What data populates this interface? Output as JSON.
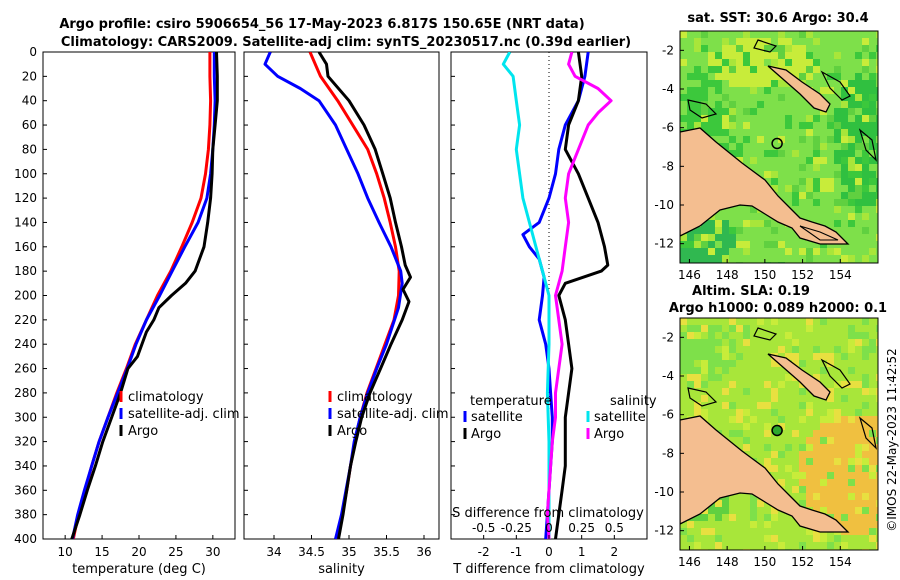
{
  "title": {
    "line1": "Argo profile: csiro 5906654_56 17-May-2023 6.817S 150.65E (NRT data)",
    "line2": "Climatology: CARS2009. Satellite-adj clim: synTS_20230517.nc (0.39d earlier)"
  },
  "watermark": "©IMOS 22-May-2023 11:42:52",
  "colors": {
    "climatology": "#ff0000",
    "satellite": "#0000ff",
    "argo": "#000000",
    "s_satellite": "#00e5ee",
    "s_argo": "#ff00ff"
  },
  "chart_data": [
    {
      "type": "line",
      "id": "temperature",
      "xlabel": "temperature (deg C)",
      "xlim": [
        7,
        33
      ],
      "ylim": [
        400,
        0
      ],
      "xticks": [
        10,
        15,
        20,
        25,
        30
      ],
      "yticks": [
        0,
        20,
        40,
        60,
        80,
        100,
        120,
        140,
        160,
        180,
        200,
        220,
        240,
        260,
        280,
        300,
        320,
        340,
        360,
        380,
        400
      ],
      "legend": [
        {
          "label": "climatology",
          "color": "#ff0000"
        },
        {
          "label": "satellite-adj. clim",
          "color": "#0000ff"
        },
        {
          "label": "Argo",
          "color": "#000000"
        }
      ],
      "series": [
        {
          "name": "climatology",
          "color": "#ff0000",
          "points": [
            [
              29.6,
              0
            ],
            [
              29.6,
              20
            ],
            [
              29.7,
              40
            ],
            [
              29.6,
              60
            ],
            [
              29.4,
              80
            ],
            [
              29.0,
              100
            ],
            [
              28.4,
              120
            ],
            [
              27.2,
              140
            ],
            [
              25.8,
              160
            ],
            [
              24.3,
              180
            ],
            [
              22.5,
              200
            ],
            [
              21.0,
              220
            ],
            [
              19.5,
              240
            ],
            [
              18.3,
              260
            ],
            [
              17.0,
              280
            ],
            [
              15.8,
              300
            ],
            [
              14.6,
              320
            ],
            [
              13.6,
              340
            ],
            [
              12.7,
              360
            ],
            [
              11.8,
              380
            ],
            [
              11.1,
              400
            ]
          ]
        },
        {
          "name": "satellite-adj. clim",
          "color": "#0000ff",
          "points": [
            [
              30.2,
              0
            ],
            [
              30.2,
              20
            ],
            [
              30.3,
              40
            ],
            [
              30.2,
              60
            ],
            [
              30.0,
              80
            ],
            [
              29.7,
              100
            ],
            [
              29.2,
              120
            ],
            [
              28.0,
              140
            ],
            [
              26.2,
              160
            ],
            [
              24.5,
              180
            ],
            [
              22.8,
              200
            ],
            [
              21.0,
              220
            ],
            [
              19.6,
              240
            ],
            [
              18.4,
              260
            ],
            [
              17.1,
              280
            ],
            [
              15.8,
              300
            ],
            [
              14.6,
              320
            ],
            [
              13.6,
              340
            ],
            [
              12.6,
              360
            ],
            [
              11.7,
              380
            ],
            [
              11.0,
              400
            ]
          ]
        },
        {
          "name": "Argo",
          "color": "#000000",
          "points": [
            [
              30.5,
              0
            ],
            [
              30.6,
              20
            ],
            [
              30.6,
              40
            ],
            [
              30.3,
              60
            ],
            [
              30.0,
              80
            ],
            [
              29.9,
              100
            ],
            [
              29.7,
              120
            ],
            [
              29.3,
              140
            ],
            [
              28.8,
              160
            ],
            [
              27.6,
              180
            ],
            [
              26.3,
              190
            ],
            [
              24.4,
              200
            ],
            [
              22.7,
              210
            ],
            [
              22.0,
              220
            ],
            [
              21.0,
              230
            ],
            [
              19.8,
              250
            ],
            [
              18.5,
              260
            ],
            [
              17.5,
              280
            ],
            [
              16.3,
              300
            ],
            [
              15.1,
              320
            ],
            [
              14.1,
              340
            ],
            [
              13.0,
              360
            ],
            [
              12.0,
              380
            ],
            [
              10.9,
              400
            ]
          ]
        }
      ]
    },
    {
      "type": "line",
      "id": "salinity",
      "xlabel": "salinity",
      "xlim": [
        33.6,
        36.2
      ],
      "ylim": [
        400,
        0
      ],
      "xticks": [
        34,
        34.5,
        35,
        35.5,
        36
      ],
      "legend": [
        {
          "label": "climatology",
          "color": "#ff0000"
        },
        {
          "label": "satellite-adj. clim",
          "color": "#0000ff"
        },
        {
          "label": "Argo",
          "color": "#000000"
        }
      ],
      "series": [
        {
          "name": "climatology",
          "color": "#ff0000",
          "points": [
            [
              34.48,
              0
            ],
            [
              34.62,
              20
            ],
            [
              34.85,
              40
            ],
            [
              35.05,
              60
            ],
            [
              35.25,
              80
            ],
            [
              35.37,
              100
            ],
            [
              35.47,
              120
            ],
            [
              35.55,
              140
            ],
            [
              35.62,
              160
            ],
            [
              35.67,
              180
            ],
            [
              35.66,
              200
            ],
            [
              35.6,
              220
            ],
            [
              35.48,
              240
            ],
            [
              35.36,
              260
            ],
            [
              35.24,
              280
            ],
            [
              35.15,
              300
            ],
            [
              35.08,
              320
            ],
            [
              35.02,
              340
            ],
            [
              34.97,
              360
            ],
            [
              34.91,
              380
            ],
            [
              34.85,
              400
            ]
          ]
        },
        {
          "name": "satellite-adj. clim",
          "color": "#0000ff",
          "points": [
            [
              33.95,
              0
            ],
            [
              33.88,
              10
            ],
            [
              34.05,
              20
            ],
            [
              34.35,
              30
            ],
            [
              34.6,
              40
            ],
            [
              34.82,
              60
            ],
            [
              34.97,
              80
            ],
            [
              35.12,
              100
            ],
            [
              35.25,
              120
            ],
            [
              35.4,
              140
            ],
            [
              35.56,
              160
            ],
            [
              35.69,
              180
            ],
            [
              35.71,
              190
            ],
            [
              35.66,
              210
            ],
            [
              35.5,
              240
            ],
            [
              35.37,
              260
            ],
            [
              35.25,
              280
            ],
            [
              35.15,
              300
            ],
            [
              35.07,
              320
            ],
            [
              35.02,
              340
            ],
            [
              34.96,
              360
            ],
            [
              34.9,
              380
            ],
            [
              34.82,
              400
            ]
          ]
        },
        {
          "name": "Argo",
          "color": "#000000",
          "points": [
            [
              34.6,
              0
            ],
            [
              34.7,
              10
            ],
            [
              34.72,
              20
            ],
            [
              35.0,
              40
            ],
            [
              35.2,
              60
            ],
            [
              35.35,
              80
            ],
            [
              35.45,
              100
            ],
            [
              35.55,
              120
            ],
            [
              35.62,
              140
            ],
            [
              35.7,
              160
            ],
            [
              35.75,
              175
            ],
            [
              35.82,
              185
            ],
            [
              35.72,
              195
            ],
            [
              35.8,
              205
            ],
            [
              35.71,
              220
            ],
            [
              35.56,
              240
            ],
            [
              35.42,
              260
            ],
            [
              35.28,
              280
            ],
            [
              35.17,
              300
            ],
            [
              35.09,
              320
            ],
            [
              35.02,
              340
            ],
            [
              34.97,
              360
            ],
            [
              34.92,
              380
            ],
            [
              34.86,
              400
            ]
          ]
        }
      ]
    },
    {
      "type": "line",
      "id": "difference",
      "xlabel": "T difference from climatology",
      "xlabel_top": "S difference from climatology",
      "xlim": [
        -3,
        3
      ],
      "ylim": [
        400,
        0
      ],
      "xticks": [
        -2,
        -1,
        0,
        1,
        2
      ],
      "xticks_s": [
        "-0.5",
        "-0.25",
        "0",
        "0.25",
        "0.5"
      ],
      "legend_t_title": "temperature",
      "legend_s_title": "salinity",
      "legend": [
        {
          "label": "satellite",
          "color": "#0000ff"
        },
        {
          "label": "Argo",
          "color": "#000000"
        },
        {
          "label": "satellite",
          "color": "#00e5ee"
        },
        {
          "label": "Argo",
          "color": "#ff00ff"
        }
      ],
      "series": [
        {
          "name": "T satellite",
          "color": "#0000ff",
          "points": [
            [
              1.2,
              0
            ],
            [
              1.1,
              20
            ],
            [
              0.9,
              40
            ],
            [
              0.5,
              60
            ],
            [
              0.3,
              80
            ],
            [
              0.2,
              100
            ],
            [
              0.0,
              120
            ],
            [
              -0.3,
              140
            ],
            [
              -0.8,
              150
            ],
            [
              -0.6,
              160
            ],
            [
              -0.3,
              170
            ],
            [
              -0.15,
              185
            ],
            [
              -0.2,
              200
            ],
            [
              -0.3,
              220
            ],
            [
              -0.1,
              240
            ],
            [
              0.0,
              260
            ],
            [
              0.05,
              280
            ],
            [
              0.1,
              300
            ],
            [
              0.1,
              320
            ],
            [
              0.05,
              340
            ],
            [
              0.0,
              360
            ],
            [
              -0.05,
              380
            ],
            [
              -0.1,
              400
            ]
          ]
        },
        {
          "name": "T Argo",
          "color": "#000000",
          "points": [
            [
              0.9,
              0
            ],
            [
              1.0,
              20
            ],
            [
              0.9,
              40
            ],
            [
              0.6,
              60
            ],
            [
              0.5,
              80
            ],
            [
              0.9,
              100
            ],
            [
              1.2,
              120
            ],
            [
              1.5,
              140
            ],
            [
              1.7,
              160
            ],
            [
              1.8,
              175
            ],
            [
              1.6,
              180
            ],
            [
              0.5,
              190
            ],
            [
              0.3,
              200
            ],
            [
              0.5,
              220
            ],
            [
              0.6,
              240
            ],
            [
              0.7,
              260
            ],
            [
              0.6,
              280
            ],
            [
              0.5,
              300
            ],
            [
              0.5,
              320
            ],
            [
              0.5,
              340
            ],
            [
              0.4,
              360
            ],
            [
              0.3,
              380
            ],
            [
              0.2,
              400
            ]
          ]
        },
        {
          "name": "S satellite",
          "color": "#00e5ee",
          "points": [
            [
              -1.2,
              0
            ],
            [
              -1.4,
              10
            ],
            [
              -1.1,
              20
            ],
            [
              -1.0,
              40
            ],
            [
              -0.9,
              60
            ],
            [
              -1.0,
              80
            ],
            [
              -0.9,
              100
            ],
            [
              -0.8,
              120
            ],
            [
              -0.6,
              140
            ],
            [
              -0.4,
              160
            ],
            [
              -0.2,
              180
            ],
            [
              0.0,
              200
            ],
            [
              0.0,
              240
            ],
            [
              -0.05,
              280
            ],
            [
              0.0,
              320
            ],
            [
              0.0,
              360
            ],
            [
              0.0,
              400
            ]
          ]
        },
        {
          "name": "S Argo",
          "color": "#ff00ff",
          "points": [
            [
              0.7,
              0
            ],
            [
              0.6,
              10
            ],
            [
              0.8,
              20
            ],
            [
              1.5,
              30
            ],
            [
              1.9,
              40
            ],
            [
              1.5,
              50
            ],
            [
              1.2,
              60
            ],
            [
              0.9,
              80
            ],
            [
              0.6,
              100
            ],
            [
              0.5,
              120
            ],
            [
              0.6,
              140
            ],
            [
              0.5,
              160
            ],
            [
              0.4,
              180
            ],
            [
              0.2,
              200
            ],
            [
              0.3,
              220
            ],
            [
              0.4,
              240
            ],
            [
              0.3,
              260
            ],
            [
              0.2,
              280
            ],
            [
              0.2,
              300
            ],
            [
              0.1,
              320
            ],
            [
              0.05,
              340
            ],
            [
              0.0,
              360
            ],
            [
              -0.05,
              380
            ],
            [
              0.0,
              400
            ]
          ]
        }
      ]
    },
    {
      "type": "heatmap",
      "id": "sst-map",
      "title": "sat. SST: 30.6 Argo: 30.4",
      "xlim": [
        145.5,
        156
      ],
      "ylim": [
        -13,
        -1
      ],
      "xticks": [
        146,
        148,
        150,
        152,
        154
      ],
      "yticks": [
        -2,
        -4,
        -6,
        -8,
        -10,
        -12
      ],
      "marker": {
        "lon": 150.65,
        "lat": -6.817
      }
    },
    {
      "type": "heatmap",
      "id": "sla-map",
      "title": "Altim. SLA: 0.19",
      "subtitle": "Argo h1000: 0.089 h2000: 0.1",
      "xlim": [
        145.5,
        156
      ],
      "ylim": [
        -13,
        -1
      ],
      "xticks": [
        146,
        148,
        150,
        152,
        154
      ],
      "yticks": [
        -2,
        -4,
        -6,
        -8,
        -10,
        -12
      ],
      "marker": {
        "lon": 150.65,
        "lat": -6.817
      }
    }
  ]
}
